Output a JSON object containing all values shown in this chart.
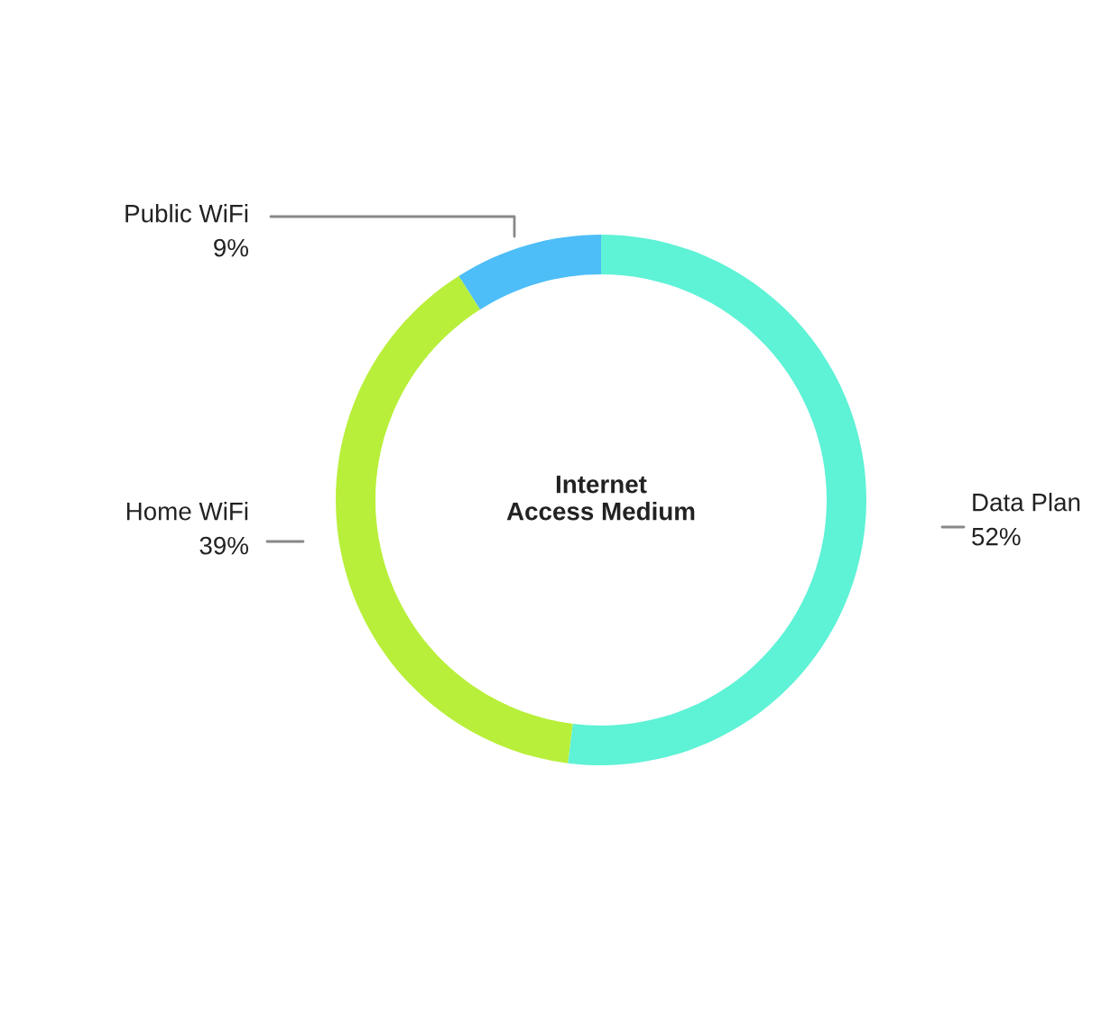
{
  "chart_data": {
    "type": "donut",
    "title": "Internet Access Medium",
    "categories": [
      "Data Plan",
      "Home WiFi",
      "Public WiFi"
    ],
    "values": [
      52,
      39,
      9
    ],
    "colors": [
      "#5ef2d6",
      "#b8ef3a",
      "#4dbef7"
    ],
    "value_labels": [
      "52%",
      "39%",
      "9%"
    ]
  }
}
